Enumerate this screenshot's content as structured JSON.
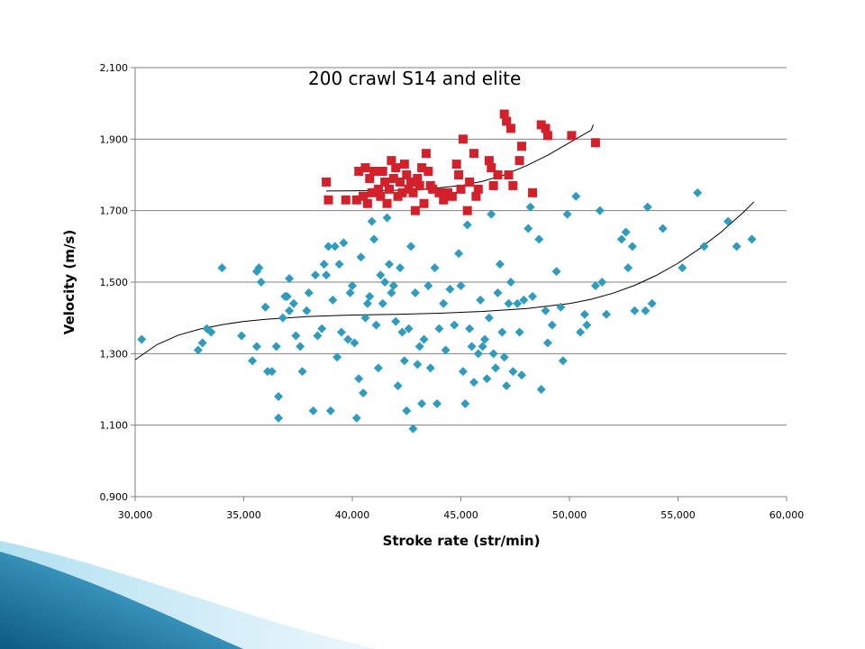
{
  "chart_data": {
    "type": "scatter",
    "title": "200 crawl S14 and elite",
    "xlabel": "Stroke rate (str/min)",
    "ylabel": "Velocity (m/s)",
    "xlim": [
      30,
      60
    ],
    "ylim": [
      0.9,
      2.1
    ],
    "x_ticks": [
      30,
      35,
      40,
      45,
      50,
      55,
      60
    ],
    "x_tick_labels": [
      "30,000",
      "35,000",
      "40,000",
      "45,000",
      "50,000",
      "55,000",
      "60,000"
    ],
    "y_ticks": [
      0.9,
      1.1,
      1.3,
      1.5,
      1.7,
      1.9,
      2.1
    ],
    "y_tick_labels": [
      "0,900",
      "1,100",
      "1,300",
      "1,500",
      "1,700",
      "1,900",
      "2,100"
    ],
    "grid": "horizontal",
    "legend": "none",
    "series": [
      {
        "marker": "square",
        "color": "#d4202a",
        "points": [
          [
            38.8,
            1.78
          ],
          [
            38.9,
            1.73
          ],
          [
            39.7,
            1.73
          ],
          [
            40.2,
            1.73
          ],
          [
            40.3,
            1.81
          ],
          [
            40.5,
            1.74
          ],
          [
            40.6,
            1.82
          ],
          [
            40.7,
            1.72
          ],
          [
            40.8,
            1.79
          ],
          [
            40.9,
            1.75
          ],
          [
            41.0,
            1.81
          ],
          [
            41.2,
            1.76
          ],
          [
            41.3,
            1.74
          ],
          [
            41.4,
            1.81
          ],
          [
            41.5,
            1.78
          ],
          [
            41.6,
            1.72
          ],
          [
            41.7,
            1.76
          ],
          [
            41.8,
            1.84
          ],
          [
            41.9,
            1.79
          ],
          [
            42.0,
            1.82
          ],
          [
            42.1,
            1.74
          ],
          [
            42.2,
            1.78
          ],
          [
            42.3,
            1.75
          ],
          [
            42.4,
            1.83
          ],
          [
            42.5,
            1.8
          ],
          [
            42.6,
            1.76
          ],
          [
            42.7,
            1.78
          ],
          [
            42.8,
            1.75
          ],
          [
            42.9,
            1.7
          ],
          [
            43.0,
            1.79
          ],
          [
            43.1,
            1.77
          ],
          [
            43.2,
            1.82
          ],
          [
            43.3,
            1.72
          ],
          [
            43.4,
            1.86
          ],
          [
            43.5,
            1.81
          ],
          [
            43.6,
            1.77
          ],
          [
            43.7,
            1.76
          ],
          [
            44.0,
            1.75
          ],
          [
            44.2,
            1.73
          ],
          [
            44.4,
            1.75
          ],
          [
            44.6,
            1.74
          ],
          [
            44.8,
            1.83
          ],
          [
            44.9,
            1.8
          ],
          [
            45.0,
            1.76
          ],
          [
            45.1,
            1.9
          ],
          [
            45.3,
            1.7
          ],
          [
            45.4,
            1.78
          ],
          [
            45.6,
            1.86
          ],
          [
            45.7,
            1.74
          ],
          [
            45.8,
            1.76
          ],
          [
            46.3,
            1.84
          ],
          [
            46.4,
            1.82
          ],
          [
            46.5,
            1.77
          ],
          [
            46.7,
            1.8
          ],
          [
            47.0,
            1.97
          ],
          [
            47.1,
            1.95
          ],
          [
            47.2,
            1.8
          ],
          [
            47.3,
            1.93
          ],
          [
            47.4,
            1.77
          ],
          [
            47.7,
            1.84
          ],
          [
            47.8,
            1.88
          ],
          [
            48.3,
            1.75
          ],
          [
            48.7,
            1.94
          ],
          [
            48.9,
            1.93
          ],
          [
            49.0,
            1.91
          ],
          [
            50.1,
            1.91
          ],
          [
            51.2,
            1.89
          ]
        ],
        "trend": [
          [
            38.8,
            1.755
          ],
          [
            41,
            1.756
          ],
          [
            43,
            1.758
          ],
          [
            45,
            1.77
          ],
          [
            46,
            1.782
          ],
          [
            47,
            1.8
          ],
          [
            48,
            1.825
          ],
          [
            49,
            1.855
          ],
          [
            50,
            1.89
          ],
          [
            51,
            1.925
          ],
          [
            51.1,
            1.94
          ]
        ]
      },
      {
        "marker": "diamond",
        "color": "#2f9bbd",
        "points": [
          [
            30.3,
            1.34
          ],
          [
            32.9,
            1.31
          ],
          [
            33.1,
            1.33
          ],
          [
            33.3,
            1.37
          ],
          [
            33.5,
            1.36
          ],
          [
            34.0,
            1.54
          ],
          [
            34.9,
            1.35
          ],
          [
            35.4,
            1.28
          ],
          [
            35.6,
            1.32
          ],
          [
            35.6,
            1.53
          ],
          [
            35.7,
            1.54
          ],
          [
            35.8,
            1.5
          ],
          [
            36.0,
            1.43
          ],
          [
            36.1,
            1.25
          ],
          [
            36.3,
            1.25
          ],
          [
            36.5,
            1.32
          ],
          [
            36.6,
            1.18
          ],
          [
            36.6,
            1.12
          ],
          [
            36.8,
            1.4
          ],
          [
            36.9,
            1.46
          ],
          [
            37.0,
            1.46
          ],
          [
            37.1,
            1.51
          ],
          [
            37.1,
            1.42
          ],
          [
            37.3,
            1.44
          ],
          [
            37.4,
            1.35
          ],
          [
            37.6,
            1.32
          ],
          [
            37.7,
            1.25
          ],
          [
            37.9,
            1.42
          ],
          [
            38.0,
            1.47
          ],
          [
            38.2,
            1.14
          ],
          [
            38.3,
            1.52
          ],
          [
            38.4,
            1.35
          ],
          [
            38.6,
            1.37
          ],
          [
            38.7,
            1.55
          ],
          [
            38.8,
            1.52
          ],
          [
            38.9,
            1.6
          ],
          [
            39.0,
            1.14
          ],
          [
            39.1,
            1.45
          ],
          [
            39.2,
            1.6
          ],
          [
            39.3,
            1.29
          ],
          [
            39.4,
            1.55
          ],
          [
            39.5,
            1.36
          ],
          [
            39.6,
            1.61
          ],
          [
            39.8,
            1.34
          ],
          [
            39.9,
            1.47
          ],
          [
            40.0,
            1.49
          ],
          [
            40.1,
            1.33
          ],
          [
            40.2,
            1.12
          ],
          [
            40.3,
            1.23
          ],
          [
            40.4,
            1.57
          ],
          [
            40.5,
            1.19
          ],
          [
            40.6,
            1.4
          ],
          [
            40.7,
            1.44
          ],
          [
            40.8,
            1.46
          ],
          [
            40.9,
            1.67
          ],
          [
            41.0,
            1.62
          ],
          [
            41.1,
            1.38
          ],
          [
            41.2,
            1.26
          ],
          [
            41.3,
            1.52
          ],
          [
            41.4,
            1.44
          ],
          [
            41.5,
            1.5
          ],
          [
            41.6,
            1.68
          ],
          [
            41.7,
            1.55
          ],
          [
            41.8,
            1.47
          ],
          [
            41.9,
            1.49
          ],
          [
            42.0,
            1.39
          ],
          [
            42.1,
            1.21
          ],
          [
            42.2,
            1.54
          ],
          [
            42.3,
            1.36
          ],
          [
            42.4,
            1.28
          ],
          [
            42.5,
            1.14
          ],
          [
            42.6,
            1.37
          ],
          [
            42.7,
            1.6
          ],
          [
            42.8,
            1.09
          ],
          [
            42.9,
            1.47
          ],
          [
            43.0,
            1.27
          ],
          [
            43.1,
            1.32
          ],
          [
            43.2,
            1.16
          ],
          [
            43.3,
            1.34
          ],
          [
            43.5,
            1.49
          ],
          [
            43.6,
            1.26
          ],
          [
            43.8,
            1.54
          ],
          [
            43.9,
            1.16
          ],
          [
            44.0,
            1.37
          ],
          [
            44.2,
            1.44
          ],
          [
            44.3,
            1.31
          ],
          [
            44.5,
            1.48
          ],
          [
            44.7,
            1.38
          ],
          [
            44.9,
            1.58
          ],
          [
            45.0,
            1.49
          ],
          [
            45.1,
            1.25
          ],
          [
            45.2,
            1.16
          ],
          [
            45.3,
            1.66
          ],
          [
            45.4,
            1.37
          ],
          [
            45.5,
            1.32
          ],
          [
            45.6,
            1.22
          ],
          [
            45.8,
            1.3
          ],
          [
            45.9,
            1.45
          ],
          [
            46.0,
            1.32
          ],
          [
            46.1,
            1.34
          ],
          [
            46.2,
            1.23
          ],
          [
            46.3,
            1.4
          ],
          [
            46.4,
            1.69
          ],
          [
            46.5,
            1.3
          ],
          [
            46.6,
            1.26
          ],
          [
            46.7,
            1.47
          ],
          [
            46.8,
            1.55
          ],
          [
            46.9,
            1.36
          ],
          [
            47.0,
            1.29
          ],
          [
            47.1,
            1.21
          ],
          [
            47.2,
            1.44
          ],
          [
            47.3,
            1.5
          ],
          [
            47.4,
            1.25
          ],
          [
            47.6,
            1.44
          ],
          [
            47.7,
            1.36
          ],
          [
            47.8,
            1.24
          ],
          [
            47.9,
            1.45
          ],
          [
            48.1,
            1.65
          ],
          [
            48.2,
            1.71
          ],
          [
            48.3,
            1.46
          ],
          [
            48.6,
            1.62
          ],
          [
            48.7,
            1.2
          ],
          [
            48.9,
            1.42
          ],
          [
            49.0,
            1.33
          ],
          [
            49.2,
            1.38
          ],
          [
            49.4,
            1.53
          ],
          [
            49.6,
            1.43
          ],
          [
            49.7,
            1.28
          ],
          [
            49.9,
            1.69
          ],
          [
            50.3,
            1.74
          ],
          [
            50.5,
            1.36
          ],
          [
            50.7,
            1.41
          ],
          [
            50.8,
            1.38
          ],
          [
            51.2,
            1.49
          ],
          [
            51.4,
            1.7
          ],
          [
            51.5,
            1.5
          ],
          [
            51.7,
            1.41
          ],
          [
            52.4,
            1.62
          ],
          [
            52.6,
            1.64
          ],
          [
            52.7,
            1.54
          ],
          [
            52.9,
            1.6
          ],
          [
            53.0,
            1.42
          ],
          [
            53.5,
            1.42
          ],
          [
            53.6,
            1.71
          ],
          [
            53.8,
            1.44
          ],
          [
            54.3,
            1.65
          ],
          [
            55.2,
            1.54
          ],
          [
            55.9,
            1.75
          ],
          [
            56.2,
            1.6
          ],
          [
            57.3,
            1.67
          ],
          [
            57.7,
            1.6
          ],
          [
            58.4,
            1.62
          ]
        ],
        "trend": [
          [
            30,
            1.283
          ],
          [
            31,
            1.325
          ],
          [
            32,
            1.352
          ],
          [
            33,
            1.369
          ],
          [
            34,
            1.381
          ],
          [
            35,
            1.39
          ],
          [
            36,
            1.396
          ],
          [
            38,
            1.404
          ],
          [
            40,
            1.408
          ],
          [
            42,
            1.41
          ],
          [
            44,
            1.413
          ],
          [
            46,
            1.418
          ],
          [
            48,
            1.426
          ],
          [
            50,
            1.44
          ],
          [
            51,
            1.452
          ],
          [
            52,
            1.469
          ],
          [
            53,
            1.491
          ],
          [
            54,
            1.519
          ],
          [
            55,
            1.553
          ],
          [
            56,
            1.594
          ],
          [
            57,
            1.641
          ],
          [
            58,
            1.695
          ],
          [
            58.5,
            1.725
          ]
        ]
      }
    ]
  }
}
